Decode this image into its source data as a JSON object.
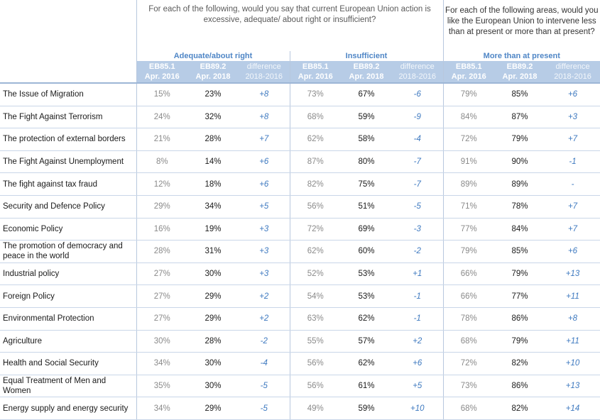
{
  "questions": {
    "q1": "For each of the following, would you say that current European Union action is excessive, adequate/ about right or insufficient?",
    "q2": "For each of the following areas, would you like the European Union to intervene less than at present or more than at present?"
  },
  "groups": [
    "Adequate/about right",
    "Insufficient",
    "More than at present"
  ],
  "subheaders": {
    "survey1": [
      "EB85.1",
      "Apr. 2016"
    ],
    "survey2": [
      "EB89.2",
      "Apr. 2018"
    ],
    "diff": [
      "difference",
      "2018-2016"
    ]
  },
  "rows": [
    {
      "label": "The Issue of Migration",
      "a": [
        "15%",
        "23%",
        "+8"
      ],
      "b": [
        "73%",
        "67%",
        "-6"
      ],
      "c": [
        "79%",
        "85%",
        "+6"
      ]
    },
    {
      "label": "The Fight Against Terrorism",
      "a": [
        "24%",
        "32%",
        "+8"
      ],
      "b": [
        "68%",
        "59%",
        "-9"
      ],
      "c": [
        "84%",
        "87%",
        "+3"
      ]
    },
    {
      "label": "The protection of external borders",
      "a": [
        "21%",
        "28%",
        "+7"
      ],
      "b": [
        "62%",
        "58%",
        "-4"
      ],
      "c": [
        "72%",
        "79%",
        "+7"
      ]
    },
    {
      "label": "The Fight Against Unemployment",
      "a": [
        "8%",
        "14%",
        "+6"
      ],
      "b": [
        "87%",
        "80%",
        "-7"
      ],
      "c": [
        "91%",
        "90%",
        "-1"
      ]
    },
    {
      "label": "The fight against tax fraud",
      "a": [
        "12%",
        "18%",
        "+6"
      ],
      "b": [
        "82%",
        "75%",
        "-7"
      ],
      "c": [
        "89%",
        "89%",
        "-"
      ]
    },
    {
      "label": "Security and Defence Policy",
      "a": [
        "29%",
        "34%",
        "+5"
      ],
      "b": [
        "56%",
        "51%",
        "-5"
      ],
      "c": [
        "71%",
        "78%",
        "+7"
      ]
    },
    {
      "label": "Economic Policy",
      "a": [
        "16%",
        "19%",
        "+3"
      ],
      "b": [
        "72%",
        "69%",
        "-3"
      ],
      "c": [
        "77%",
        "84%",
        "+7"
      ]
    },
    {
      "label": "The promotion of democracy and peace in the world",
      "a": [
        "28%",
        "31%",
        "+3"
      ],
      "b": [
        "62%",
        "60%",
        "-2"
      ],
      "c": [
        "79%",
        "85%",
        "+6"
      ]
    },
    {
      "label": "Industrial policy",
      "a": [
        "27%",
        "30%",
        "+3"
      ],
      "b": [
        "52%",
        "53%",
        "+1"
      ],
      "c": [
        "66%",
        "79%",
        "+13"
      ]
    },
    {
      "label": "Foreign Policy",
      "a": [
        "27%",
        "29%",
        "+2"
      ],
      "b": [
        "54%",
        "53%",
        "-1"
      ],
      "c": [
        "66%",
        "77%",
        "+11"
      ]
    },
    {
      "label": "Environmental Protection",
      "a": [
        "27%",
        "29%",
        "+2"
      ],
      "b": [
        "63%",
        "62%",
        "-1"
      ],
      "c": [
        "78%",
        "86%",
        "+8"
      ]
    },
    {
      "label": "Agriculture",
      "a": [
        "30%",
        "28%",
        "-2"
      ],
      "b": [
        "55%",
        "57%",
        "+2"
      ],
      "c": [
        "68%",
        "79%",
        "+11"
      ]
    },
    {
      "label": "Health and Social Security",
      "a": [
        "34%",
        "30%",
        "-4"
      ],
      "b": [
        "56%",
        "62%",
        "+6"
      ],
      "c": [
        "72%",
        "82%",
        "+10"
      ]
    },
    {
      "label": "Equal Treatment of Men and Women",
      "a": [
        "35%",
        "30%",
        "-5"
      ],
      "b": [
        "56%",
        "61%",
        "+5"
      ],
      "c": [
        "73%",
        "86%",
        "+13"
      ]
    },
    {
      "label": "Energy supply and energy security",
      "a": [
        "34%",
        "29%",
        "-5"
      ],
      "b": [
        "49%",
        "59%",
        "+10"
      ],
      "c": [
        "68%",
        "82%",
        "+14"
      ]
    }
  ],
  "colors": {
    "accent": "#4f86c6",
    "header_band": "#b7cce6",
    "grid": "#c9d6e8"
  }
}
